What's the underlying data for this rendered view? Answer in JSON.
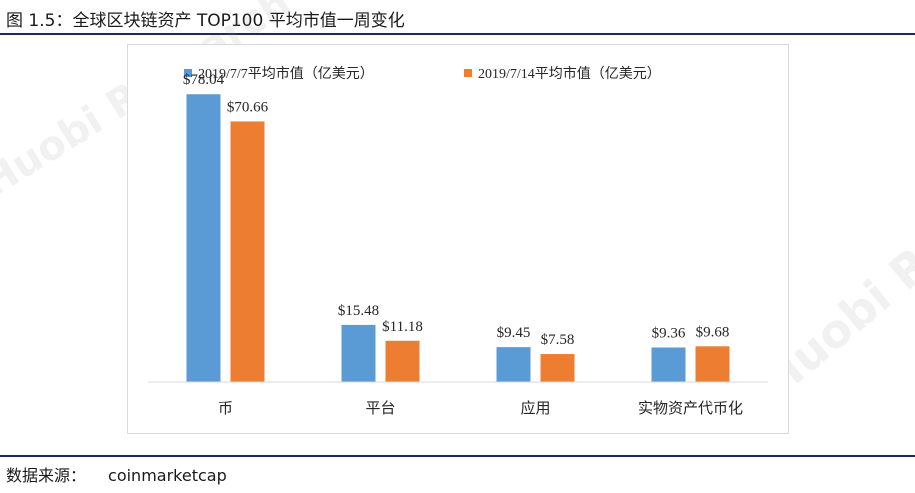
{
  "figure": {
    "title": "图 1.5：全球区块链资产 TOP100 平均市值一周变化",
    "source_label": "数据来源：",
    "source_value": "coinmarketcap",
    "watermark_text": "Huobi Research"
  },
  "colors": {
    "series1": "#5b9bd5",
    "series2": "#ed7d31",
    "axis": "#d9d9d9",
    "rule": "#1f2a5a"
  },
  "chart_data": {
    "type": "bar",
    "categories": [
      "币",
      "平台",
      "应用",
      "实物资产代币化"
    ],
    "series": [
      {
        "name": "2019/7/7平均市值（亿美元）",
        "values": [
          78.04,
          15.48,
          9.45,
          9.36
        ],
        "labels": [
          "$78.04",
          "$15.48",
          "$9.45",
          "$9.36"
        ]
      },
      {
        "name": "2019/7/14平均市值（亿美元）",
        "values": [
          70.66,
          11.18,
          7.58,
          9.68
        ],
        "labels": [
          "$70.66",
          "$11.18",
          "$7.58",
          "$9.68"
        ]
      }
    ],
    "title": "",
    "xlabel": "",
    "ylabel": "",
    "ylim": [
      0,
      80
    ],
    "grid": false,
    "legend_position": "top"
  }
}
